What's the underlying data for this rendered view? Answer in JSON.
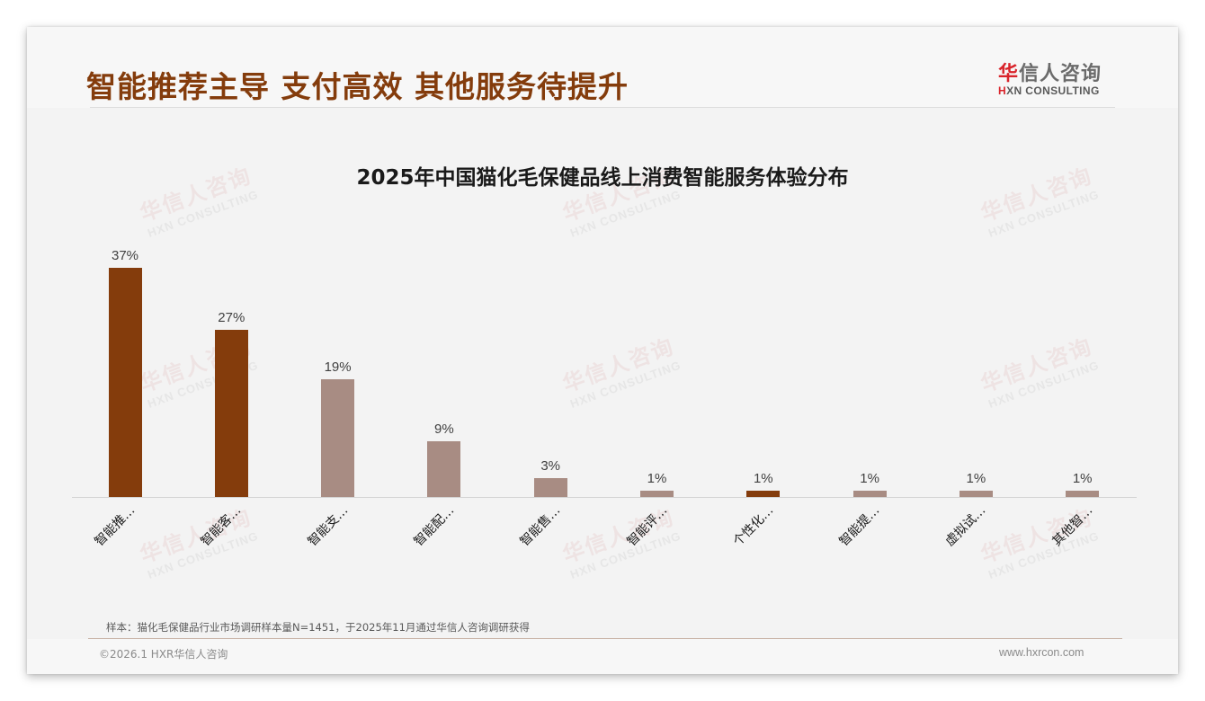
{
  "header": {
    "title": "智能推荐主导 支付高效 其他服务待提升",
    "logo": {
      "cn_accent": "华",
      "cn_rest": "信人咨询",
      "en_accent": "H",
      "en_rest": "XN CONSULTING"
    }
  },
  "watermark": {
    "cn": "华信人咨询",
    "en": "HXN CONSULTING"
  },
  "colors": {
    "primary": "#843C0C",
    "secondary": "#A88C83",
    "title": "#843C0C"
  },
  "chart_data": {
    "type": "bar",
    "title": "2025年中国猫化毛保健品线上消费智能服务体验分布",
    "xlabel": "",
    "ylabel": "",
    "ylim": [
      0,
      40
    ],
    "grid": false,
    "legend": null,
    "categories": [
      "智能推…",
      "智能客…",
      "智能支…",
      "智能配…",
      "智能售…",
      "智能评…",
      "个性化…",
      "智能提…",
      "虚拟试…",
      "其他智…"
    ],
    "values": [
      37,
      27,
      19,
      9,
      3,
      1,
      1,
      1,
      1,
      1
    ],
    "value_labels": [
      "37%",
      "27%",
      "19%",
      "9%",
      "3%",
      "1%",
      "1%",
      "1%",
      "1%",
      "1%"
    ],
    "highlight": [
      true,
      true,
      false,
      false,
      false,
      false,
      true,
      false,
      false,
      false
    ],
    "unit": "%"
  },
  "footer": {
    "note": "样本：猫化毛保健品行业市场调研样本量N=1451，于2025年11月通过华信人咨询调研获得",
    "copyright": "©2026.1 HXR华信人咨询",
    "website": "www.hxrcon.com"
  }
}
